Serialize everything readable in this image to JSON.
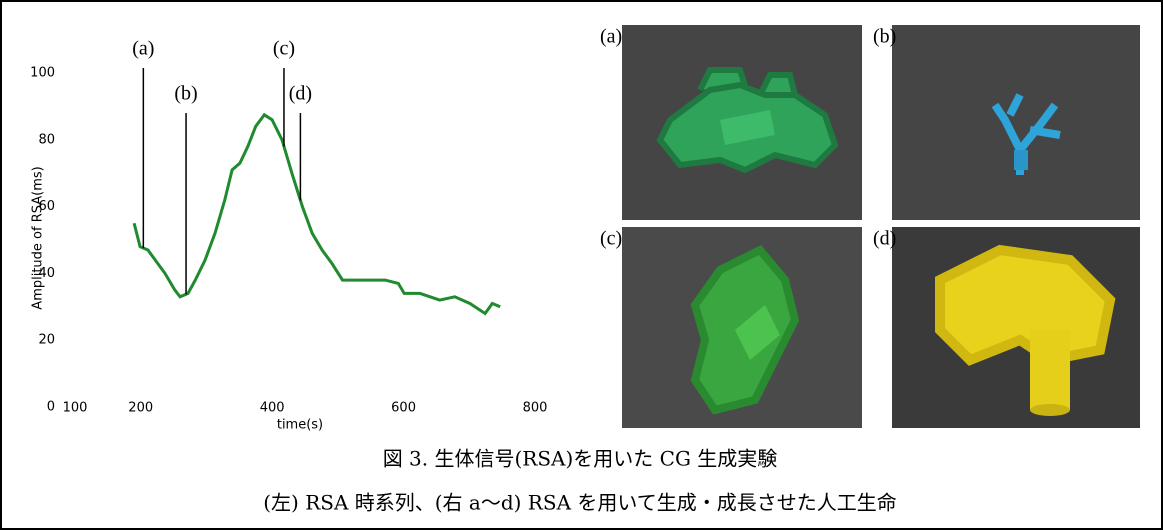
{
  "chart_data": {
    "type": "line",
    "y_label": "Amplitude of RSA(ms)",
    "x_label": "time(s)",
    "xlim": [
      100,
      800
    ],
    "xticks": [
      100,
      200,
      400,
      600,
      800
    ],
    "ylim": [
      0,
      100
    ],
    "yticks": [
      0,
      20,
      40,
      60,
      80,
      100
    ],
    "grid": false,
    "series": [
      {
        "color": "#1f8a2e",
        "x": [
          190,
          199,
          211,
          222,
          237,
          252,
          260,
          272,
          283,
          298,
          313,
          328,
          339,
          351,
          363,
          375,
          388,
          400,
          415,
          430,
          446,
          461,
          476,
          491,
          507,
          526,
          549,
          572,
          592,
          601,
          625,
          655,
          678,
          701,
          724,
          735,
          747
        ],
        "values": [
          55,
          48,
          47,
          44,
          40,
          35,
          33,
          34,
          38,
          44,
          52,
          62,
          71,
          73,
          78,
          84,
          87.5,
          86,
          80,
          70,
          60,
          52,
          47,
          43,
          38,
          38,
          38,
          38,
          37,
          34,
          34,
          32,
          33,
          31,
          28,
          31,
          30
        ]
      }
    ],
    "annotations": [
      {
        "label": "(a)",
        "x": 204
      },
      {
        "label": "(b)",
        "x": 269
      },
      {
        "label": "(c)",
        "x": 418
      },
      {
        "label": "(d)",
        "x": 443
      }
    ]
  },
  "panels": [
    "(a)",
    "(b)",
    "(c)",
    "(d)"
  ],
  "caption": [
    "図 3. 生体信号(RSA)を用いた CG 生成実験",
    "(左) RSA 時系列、(右 a〜d) RSA を用いて生成・成長させた人工生命"
  ]
}
